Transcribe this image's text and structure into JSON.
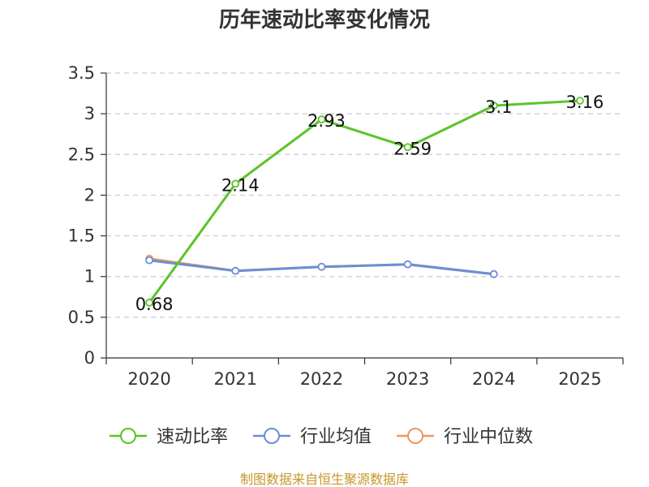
{
  "chart_data": {
    "type": "line",
    "title": "历年速动比率变化情况",
    "categories": [
      "2020",
      "2021",
      "2022",
      "2023",
      "2024",
      "2025"
    ],
    "ylim": [
      0,
      3.5
    ],
    "yticks": [
      "0",
      "0.5",
      "1",
      "1.5",
      "2",
      "2.5",
      "3",
      "3.5"
    ],
    "series": [
      {
        "name": "速动比率",
        "color": "#5bc429",
        "values": [
          0.68,
          2.14,
          2.93,
          2.59,
          3.1,
          3.16
        ],
        "labels": [
          "0.68",
          "2.14",
          "2.93",
          "2.59",
          "3.1",
          "3.16"
        ]
      },
      {
        "name": "行业均值",
        "color": "#6b8fd6",
        "values": [
          1.2,
          1.07,
          1.12,
          1.15,
          1.03,
          null
        ]
      },
      {
        "name": "行业中位数",
        "color": "#f0955f",
        "values": [
          1.22,
          1.07,
          1.12,
          1.15,
          1.03,
          null
        ]
      }
    ],
    "legend_position": "bottom",
    "grid": true
  },
  "footer": {
    "source": "制图数据来自恒生聚源数据库"
  }
}
